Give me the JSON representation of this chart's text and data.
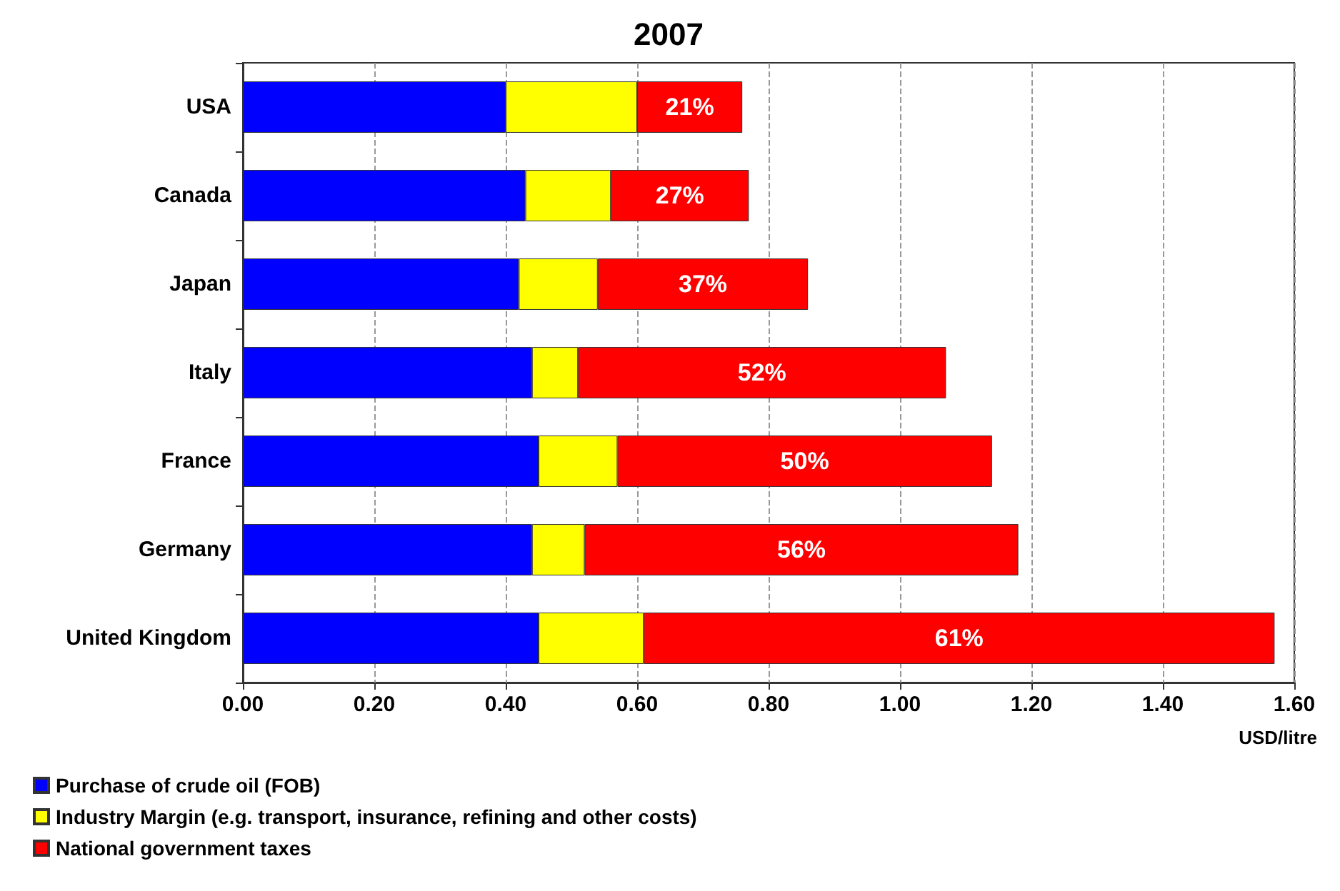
{
  "chart_data": {
    "type": "bar",
    "title": "2007",
    "orientation": "horizontal",
    "stacked": true,
    "categories": [
      "USA",
      "Canada",
      "Japan",
      "Italy",
      "France",
      "Germany",
      "United Kingdom"
    ],
    "series": [
      {
        "name": "Purchase of crude oil (FOB)",
        "color": "#0000ff",
        "values": [
          0.4,
          0.43,
          0.42,
          0.44,
          0.45,
          0.44,
          0.45
        ]
      },
      {
        "name": "Industry Margin (e.g. transport, insurance, refining and other costs)",
        "color": "#ffff00",
        "values": [
          0.2,
          0.13,
          0.12,
          0.07,
          0.12,
          0.08,
          0.16
        ]
      },
      {
        "name": "National government taxes",
        "color": "#ff0000",
        "values": [
          0.16,
          0.21,
          0.32,
          0.56,
          0.57,
          0.66,
          0.96
        ]
      }
    ],
    "annotations": [
      "21%",
      "27%",
      "37%",
      "52%",
      "50%",
      "56%",
      "61%"
    ],
    "xlabel": "USD/litre",
    "xlim": [
      0,
      1.6
    ],
    "xticks": [
      {
        "value": 0,
        "label": "0.00"
      },
      {
        "value": 0.2,
        "label": "0.20"
      },
      {
        "value": 0.4,
        "label": "0.40"
      },
      {
        "value": 0.6,
        "label": "0.60"
      },
      {
        "value": 0.8,
        "label": "0.80"
      },
      {
        "value": 1.0,
        "label": "1.00"
      },
      {
        "value": 1.2,
        "label": "1.20"
      },
      {
        "value": 1.4,
        "label": "1.40"
      },
      {
        "value": 1.6,
        "label": "1.60"
      }
    ],
    "grid": "x",
    "legend": "bottom left"
  }
}
